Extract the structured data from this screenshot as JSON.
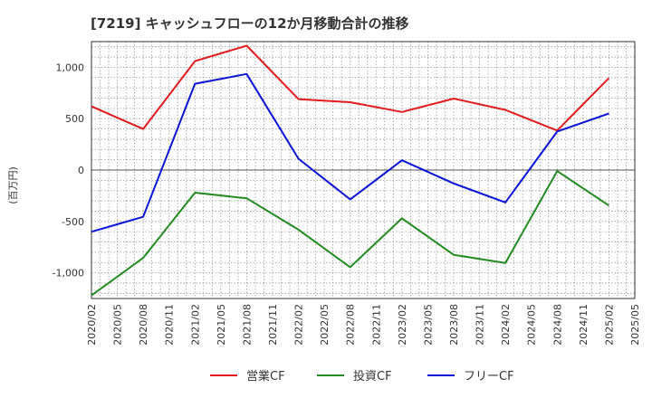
{
  "chart_data": {
    "type": "line",
    "title": "[7219]  キャッシュフローの12か月移動合計の推移",
    "ylabel": "(百万円)",
    "xlabel": "",
    "ylim": [
      -1250,
      1250
    ],
    "yticks": [
      1000,
      500,
      0,
      -500,
      -1000
    ],
    "ytick_labels": [
      "1,000",
      "500",
      "0",
      "-500",
      "-1,000"
    ],
    "x_tick_labels": [
      "2020/02",
      "2020/05",
      "2020/08",
      "2020/11",
      "2021/02",
      "2021/05",
      "2021/08",
      "2021/11",
      "2022/02",
      "2022/05",
      "2022/08",
      "2022/11",
      "2023/02",
      "2023/05",
      "2023/08",
      "2023/11",
      "2024/02",
      "2024/05",
      "2024/08",
      "2024/11",
      "2025/02",
      "2025/05"
    ],
    "point_categories": [
      "2020/02",
      "2020/08",
      "2021/02",
      "2021/08",
      "2022/02",
      "2022/08",
      "2023/02",
      "2023/08",
      "2024/02",
      "2024/08",
      "2025/02"
    ],
    "series": [
      {
        "name": "営業CF",
        "color": "#e31a1c",
        "values": [
          620,
          400,
          1060,
          1210,
          690,
          660,
          565,
          695,
          585,
          385,
          895
        ]
      },
      {
        "name": "投資CF",
        "color": "#238b22",
        "values": [
          -1220,
          -855,
          -220,
          -275,
          -580,
          -945,
          -470,
          -825,
          -905,
          -10,
          -345
        ]
      },
      {
        "name": "フリーCF",
        "color": "#0a14d8",
        "values": [
          -600,
          -455,
          840,
          935,
          110,
          -285,
          95,
          -130,
          -315,
          375,
          550
        ]
      }
    ],
    "grid": true,
    "legend_position": "bottom"
  }
}
